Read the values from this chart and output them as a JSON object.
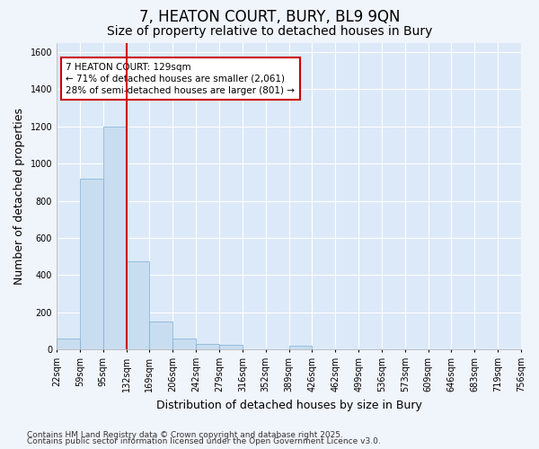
{
  "title": "7, HEATON COURT, BURY, BL9 9QN",
  "subtitle": "Size of property relative to detached houses in Bury",
  "xlabel": "Distribution of detached houses by size in Bury",
  "ylabel": "Number of detached properties",
  "bins": [
    "22sqm",
    "59sqm",
    "95sqm",
    "132sqm",
    "169sqm",
    "206sqm",
    "242sqm",
    "279sqm",
    "316sqm",
    "352sqm",
    "389sqm",
    "426sqm",
    "462sqm",
    "499sqm",
    "536sqm",
    "573sqm",
    "609sqm",
    "646sqm",
    "683sqm",
    "719sqm",
    "756sqm"
  ],
  "values": [
    60,
    920,
    1200,
    475,
    150,
    60,
    30,
    25,
    0,
    0,
    20,
    0,
    0,
    0,
    0,
    0,
    0,
    0,
    0,
    0
  ],
  "bar_color": "#c9ddf0",
  "bar_edge_color": "#7bafd4",
  "vline_x": 3,
  "vline_color": "#cc0000",
  "ylim": [
    0,
    1650
  ],
  "yticks": [
    0,
    200,
    400,
    600,
    800,
    1000,
    1200,
    1400,
    1600
  ],
  "annotation_text": "7 HEATON COURT: 129sqm\n← 71% of detached houses are smaller (2,061)\n28% of semi-detached houses are larger (801) →",
  "annotation_box_color": "#cc0000",
  "footnote1": "Contains HM Land Registry data © Crown copyright and database right 2025.",
  "footnote2": "Contains public sector information licensed under the Open Government Licence v3.0.",
  "background_color": "#f0f4fb",
  "plot_bg_color": "#dce9f8",
  "grid_color": "#ffffff",
  "title_fontsize": 12,
  "subtitle_fontsize": 10,
  "axis_label_fontsize": 9,
  "tick_fontsize": 7,
  "footnote_fontsize": 6.5
}
